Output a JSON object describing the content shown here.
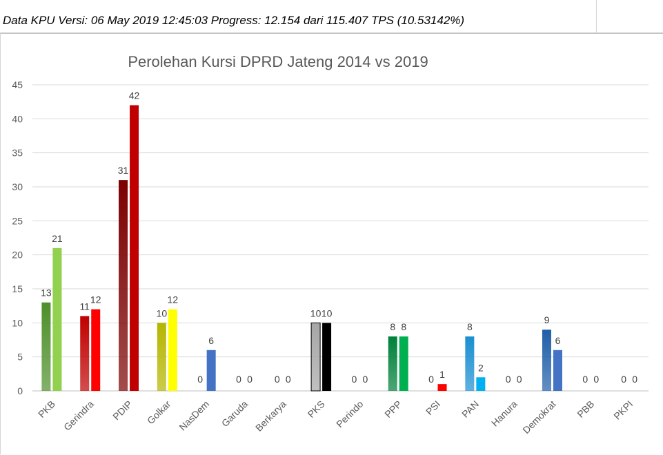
{
  "header": {
    "text": "Data KPU Versi: 06 May 2019 12:45:03 Progress: 12.154 dari 115.407 TPS (10.53142%)"
  },
  "chart_data": {
    "type": "bar",
    "title": "Perolehan Kursi DPRD Jateng 2014 vs 2019",
    "xlabel": "",
    "ylabel": "",
    "ylim": [
      0,
      45
    ],
    "yticks": [
      0,
      5,
      10,
      15,
      20,
      25,
      30,
      35,
      40,
      45
    ],
    "grid": true,
    "legend": "none",
    "categories": [
      "PKB",
      "Gerindra",
      "PDIP",
      "Golkar",
      "NasDem",
      "Garuda",
      "Berkarya",
      "PKS",
      "Perindo",
      "PPP",
      "PSI",
      "PAN",
      "Hanura",
      "Demokrat",
      "PBB",
      "PKPI"
    ],
    "series": [
      {
        "values": [
          13,
          11,
          31,
          10,
          0,
          0,
          0,
          10,
          0,
          8,
          0,
          8,
          0,
          9,
          0,
          0
        ]
      },
      {
        "values": [
          21,
          12,
          42,
          12,
          6,
          0,
          0,
          10,
          0,
          8,
          1,
          2,
          0,
          6,
          0,
          0
        ]
      }
    ],
    "colors_2014": [
      "#4e8f2a",
      "#c00000",
      "#7b0000",
      "#b5b500",
      "#4472c4",
      "#999999",
      "#999999",
      "#a6a6a6",
      "#999999",
      "#00803a",
      "#ff0000",
      "#1a8fd1",
      "#999999",
      "#1f5fa8",
      "#999999",
      "#999999"
    ],
    "colors_2019": [
      "#92d050",
      "#ff0000",
      "#c00000",
      "#ffff00",
      "#4472c4",
      "#999999",
      "#999999",
      "#000000",
      "#999999",
      "#00b050",
      "#ff0000",
      "#00b0f0",
      "#999999",
      "#4472c4",
      "#999999",
      "#999999"
    ]
  }
}
